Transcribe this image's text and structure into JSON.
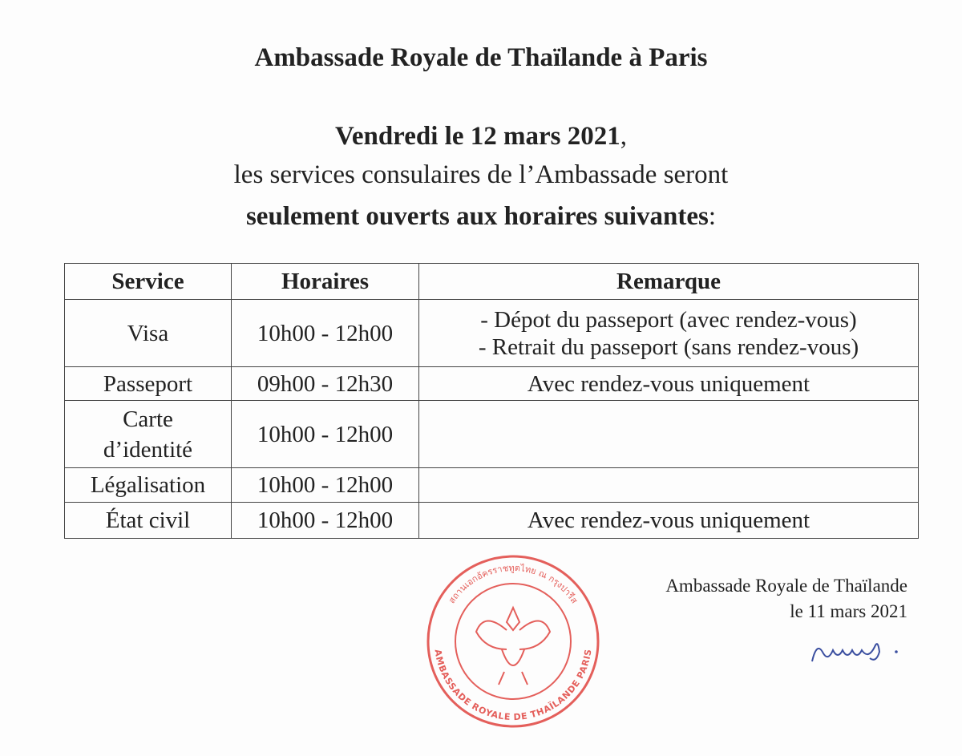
{
  "header": {
    "title": "Ambassade Royale de Thaïlande à Paris",
    "date_line": "Vendredi le 12 mars 2021",
    "date_suffix": ",",
    "line2": "les services consulaires de l’Ambassade seront",
    "line3_bold": "seulement ouverts aux horaires suivantes",
    "line3_suffix": ":"
  },
  "table": {
    "headers": [
      "Service",
      "Horaires",
      "Remarque"
    ],
    "rows": [
      {
        "service": "Visa",
        "hours": "10h00 - 12h00",
        "remark": [
          "- Dépot du passeport (avec rendez-vous)",
          "- Retrait du passeport (sans rendez-vous)"
        ]
      },
      {
        "service": "Passeport",
        "hours": "09h00 - 12h30",
        "remark": [
          "Avec rendez-vous uniquement"
        ]
      },
      {
        "service": "Carte d’identité",
        "hours": "10h00 - 12h00",
        "remark": [
          ""
        ]
      },
      {
        "service": "Légalisation",
        "hours": "10h00 - 12h00",
        "remark": [
          ""
        ]
      },
      {
        "service": "État civil",
        "hours": "10h00 - 12h00",
        "remark": [
          "Avec rendez-vous uniquement"
        ]
      }
    ]
  },
  "signature": {
    "line1": "Ambassade Royale de Thaïlande",
    "line2": "le 11 mars 2021"
  },
  "stamp": {
    "text_fr": "AMBASSADE ROYALE DE THAÏLANDE PARIS",
    "text_th": "สถานเอกอัครราชทูตไทย ณ กรุงปารีส",
    "color": "#e0443f"
  },
  "signature_ink": "#3b4fa0"
}
